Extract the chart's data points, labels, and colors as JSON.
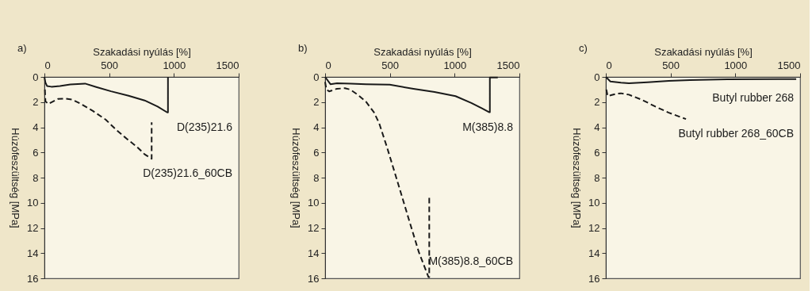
{
  "chart_data": [
    {
      "type": "line",
      "title": "a)",
      "xlabel": "Szakadási nyúlás [%]",
      "ylabel": "Húzófeszültség [MPa]",
      "xlim": [
        0,
        1500
      ],
      "xticks": [
        0,
        500,
        1000,
        1500
      ],
      "ylim": [
        16,
        0
      ],
      "yticks": [
        0,
        2,
        4,
        6,
        8,
        10,
        12,
        14,
        16
      ],
      "series": [
        {
          "name": "D(235)21.6",
          "color": "#1a1a1a",
          "line_style": "solid",
          "x": [
            0,
            8,
            20,
            54,
            120,
            200,
            314,
            400,
            514,
            650,
            774,
            874,
            948,
            954,
            954
          ],
          "values": [
            0,
            0.45,
            0.72,
            0.78,
            0.72,
            0.6,
            0.53,
            0.8,
            1.14,
            1.5,
            1.87,
            2.36,
            2.82,
            2.82,
            0
          ]
        },
        {
          "name": "D(235)21.6_60CB",
          "color": "#1a1a1a",
          "line_style": "dashed",
          "x": [
            4,
            8,
            30,
            104,
            154,
            214,
            274,
            374,
            474,
            554,
            634,
            714,
            774,
            828,
            828
          ],
          "values": [
            1.0,
            1.94,
            2.15,
            1.75,
            1.72,
            1.8,
            2.1,
            2.7,
            3.4,
            4.2,
            4.9,
            5.55,
            6.15,
            6.5,
            3.6
          ]
        }
      ]
    },
    {
      "type": "line",
      "title": "b)",
      "xlabel": "Szakadási nyúlás [%]",
      "ylabel": "Húzófeszültség [MPa]",
      "xlim": [
        0,
        1500
      ],
      "xticks": [
        0,
        500,
        1000,
        1500
      ],
      "ylim": [
        16,
        0
      ],
      "yticks": [
        0,
        2,
        4,
        6,
        8,
        10,
        12,
        14,
        16
      ],
      "series": [
        {
          "name": "M(385)8.8",
          "color": "#1a1a1a",
          "line_style": "solid",
          "x": [
            0,
            41,
            92,
            200,
            315,
            499,
            682,
            845,
            1007,
            1129,
            1211,
            1268,
            1272,
            1272,
            1333
          ],
          "values": [
            0,
            0.58,
            0.5,
            0.53,
            0.58,
            0.62,
            0.94,
            1.2,
            1.53,
            2.07,
            2.5,
            2.81,
            2.81,
            0.05,
            0.05
          ]
        },
        {
          "name": "M(385)8.8_60CB",
          "color": "#1a1a1a",
          "line_style": "dashed",
          "x": [
            0,
            10,
            31,
            92,
            153,
            193,
            254,
            315,
            377,
            417,
            478,
            560,
            641,
            723,
            798,
            804,
            804
          ],
          "values": [
            0.4,
            1.0,
            1.15,
            0.94,
            0.9,
            1.0,
            1.43,
            1.96,
            2.81,
            3.67,
            5.59,
            8.36,
            11.13,
            13.9,
            15.9,
            15.9,
            9.42
          ]
        }
      ]
    },
    {
      "type": "line",
      "title": "c)",
      "xlabel": "Szakadási nyúlás [%]",
      "ylabel": "Húzófeszültség [MPa]",
      "xlim": [
        0,
        1500
      ],
      "xticks": [
        0,
        500,
        1000,
        1500
      ],
      "ylim": [
        16,
        0
      ],
      "yticks": [
        0,
        2,
        4,
        6,
        8,
        10,
        12,
        14,
        16
      ],
      "series": [
        {
          "name": "Butyl rubber 268",
          "color": "#1a1a1a",
          "line_style": "solid",
          "x": [
            0,
            35,
            117,
            178,
            322,
            486,
            650,
            937,
            1326,
            1470
          ],
          "values": [
            0,
            0.36,
            0.46,
            0.5,
            0.42,
            0.32,
            0.25,
            0.19,
            0.17,
            0.17
          ]
        },
        {
          "name": "Butyl rubber 268_60CB",
          "color": "#1a1a1a",
          "line_style": "dashed",
          "x": [
            4,
            14,
            35,
            76,
            117,
            178,
            281,
            383,
            486,
            568,
            619
          ],
          "values": [
            1.0,
            1.52,
            1.47,
            1.35,
            1.3,
            1.41,
            1.83,
            2.36,
            2.84,
            3.16,
            3.35
          ]
        }
      ]
    }
  ]
}
